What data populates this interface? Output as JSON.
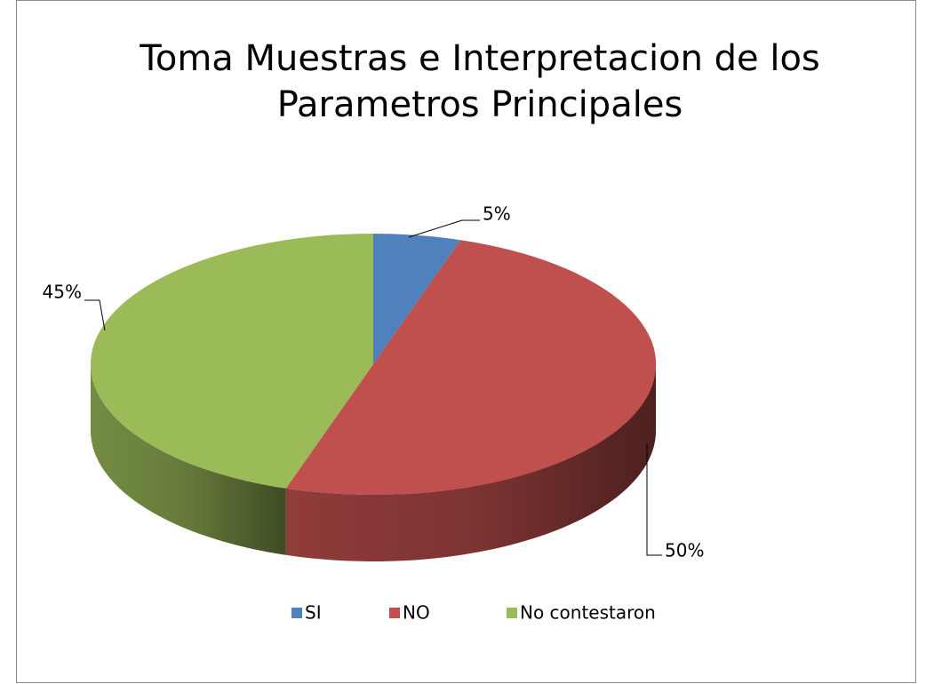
{
  "chart_data": {
    "type": "pie3d",
    "title": "Toma Muestras e Interpretacion de los Parametros Principales",
    "categories": [
      "SI",
      "NO",
      "No contestaron"
    ],
    "values": [
      5,
      50,
      45
    ],
    "value_labels": [
      "5%",
      "50%",
      "45%"
    ],
    "colors": [
      "#4f81bd",
      "#c0504d",
      "#9bbb59"
    ],
    "legend": "bottom"
  }
}
